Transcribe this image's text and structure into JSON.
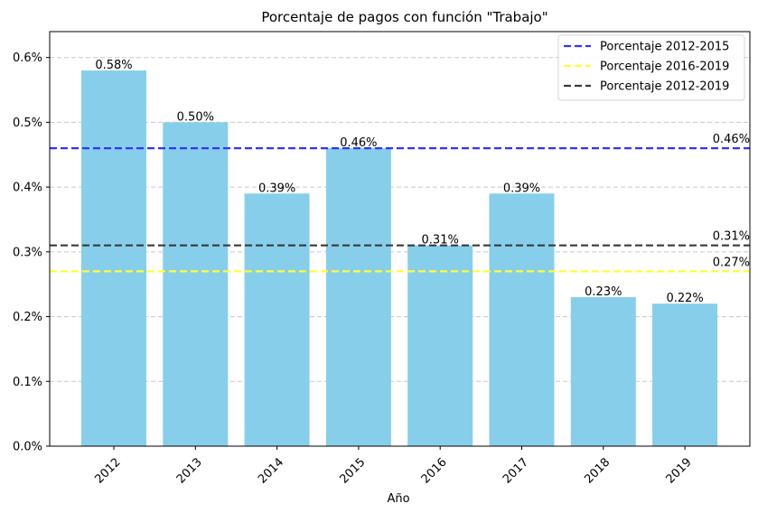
{
  "chart_data": {
    "type": "bar",
    "title": "Porcentaje de pagos con función \"Trabajo\"",
    "xlabel": "Año",
    "ylabel": "",
    "categories": [
      "2012",
      "2013",
      "2014",
      "2015",
      "2016",
      "2017",
      "2018",
      "2019"
    ],
    "values": [
      0.58,
      0.5,
      0.39,
      0.46,
      0.31,
      0.39,
      0.23,
      0.22
    ],
    "data_labels": [
      "0.58%",
      "0.50%",
      "0.39%",
      "0.46%",
      "0.31%",
      "0.39%",
      "0.23%",
      "0.22%"
    ],
    "ylim": [
      0,
      0.64
    ],
    "yticks": [
      0.0,
      0.1,
      0.2,
      0.3,
      0.4,
      0.5,
      0.6
    ],
    "ytick_labels": [
      "0.0%",
      "0.1%",
      "0.2%",
      "0.3%",
      "0.4%",
      "0.5%",
      "0.6%"
    ],
    "grid": "horizontal dashed",
    "legend_position": "top-right",
    "bar_color": "#87CEEB",
    "reference_lines": [
      {
        "name": "Porcentaje 2012-2015",
        "value": 0.46,
        "label": "0.46%",
        "color": "#3333ff"
      },
      {
        "name": "Porcentaje 2016-2019",
        "value": 0.27,
        "label": "0.27%",
        "color": "#ffff33"
      },
      {
        "name": "Porcentaje 2012-2019",
        "value": 0.31,
        "label": "0.31%",
        "color": "#3a3a3a"
      }
    ]
  }
}
